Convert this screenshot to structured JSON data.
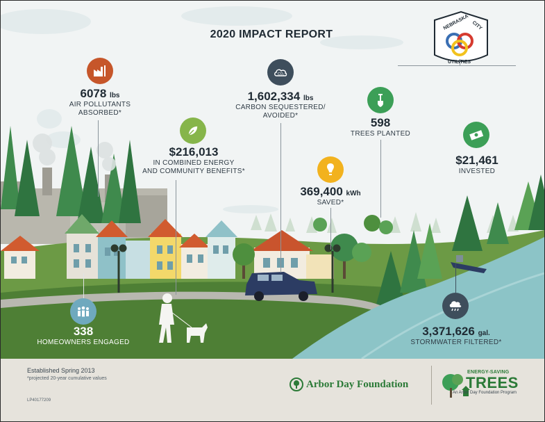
{
  "header": {
    "title": "2020 IMPACT REPORT"
  },
  "logo": {
    "top_text": "NEBRASKA",
    "right_text": "CITY",
    "bottom_text": "UTILITIES"
  },
  "stats": {
    "air": {
      "value": "6078",
      "unit": "lbs",
      "label_1": "AIR POLLUTANTS",
      "label_2": "ABSORBED*",
      "icon": "factory-icon",
      "color": "#c6562a"
    },
    "community": {
      "value": "$216,013",
      "label_1": "IN COMBINED ENERGY",
      "label_2": "AND COMMUNITY BENEFITS*",
      "icon": "leaf-icon",
      "color": "#86b54a"
    },
    "carbon": {
      "value": "1,602,334",
      "unit": "lbs",
      "label_1": "CARBON SEQUESTERED/",
      "label_2": "AVOIDED*",
      "icon": "co2-cloud-icon",
      "icon_text": "CO₂",
      "color": "#3e4e5c"
    },
    "energy": {
      "value": "369,400",
      "unit": "kWh",
      "label_1": "SAVED*",
      "icon": "lightbulb-icon",
      "color": "#f2b21e"
    },
    "trees": {
      "value": "598",
      "label_1": "TREES PLANTED",
      "icon": "shovel-icon",
      "color": "#3c9f57"
    },
    "invested": {
      "value": "$21,461",
      "label_1": "INVESTED",
      "icon": "money-icon",
      "color": "#3c9f57"
    },
    "homeowners": {
      "value": "338",
      "label_1": "HOMEOWNERS ENGAGED",
      "icon": "people-icon",
      "color": "#6fa9be"
    },
    "stormwater": {
      "value": "3,371,626",
      "unit": "gal.",
      "label_1": "STORMWATER FILTERED*",
      "icon": "rain-cloud-icon",
      "color": "#3e4e5c"
    }
  },
  "footer": {
    "established": "Established Spring 2013",
    "note": "*projected 20-year cumulative values",
    "code": "LP40177209",
    "arbor_day": "Arbor Day Foundation",
    "est_small": "ENERGY-SAVING",
    "est_big": "TREES",
    "est_sub": "An Arbor Day Foundation Program"
  }
}
